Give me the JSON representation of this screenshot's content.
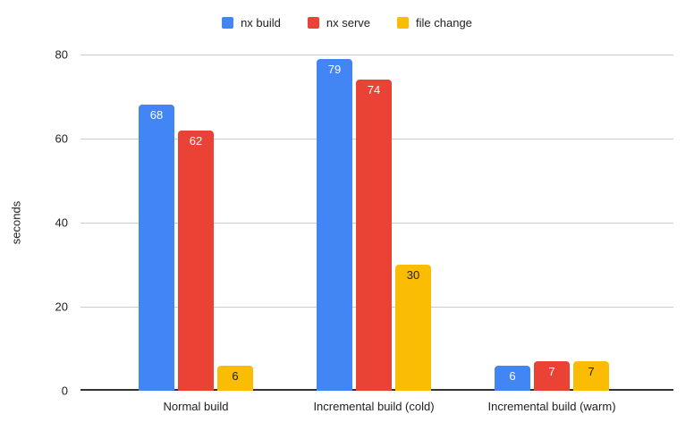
{
  "chart_data": {
    "type": "bar",
    "title": "",
    "categories": [
      "Normal build",
      "Incremental build (cold)",
      "Incremental build (warm)"
    ],
    "series": [
      {
        "name": "nx build",
        "color": "#4285F4",
        "label_color": "#ffffff",
        "values": [
          68,
          79,
          6
        ]
      },
      {
        "name": "nx serve",
        "color": "#EA4335",
        "label_color": "#ffffff",
        "values": [
          62,
          74,
          7
        ]
      },
      {
        "name": "file change",
        "color": "#FBBC04",
        "label_color": "#212121",
        "values": [
          6,
          30,
          7
        ]
      }
    ],
    "xlabel": "",
    "ylabel": "seconds",
    "ylim": [
      0,
      80
    ],
    "yticks": [
      0,
      20,
      40,
      60,
      80
    ],
    "grid": true,
    "legend_position": "top",
    "colors": {
      "grid_line": "#cccccc",
      "axis_line": "#333333",
      "text": "#202124",
      "background": "#ffffff"
    }
  }
}
